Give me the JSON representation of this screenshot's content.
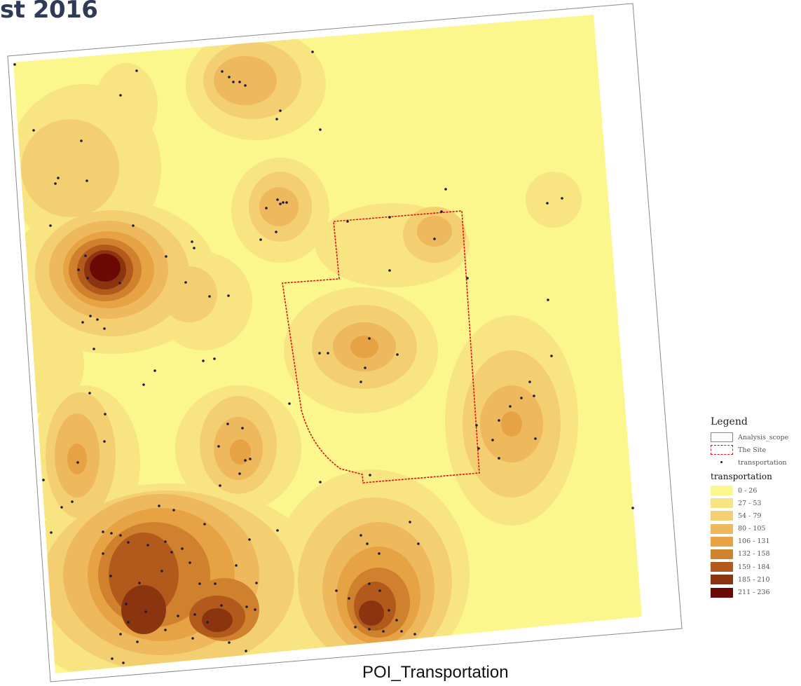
{
  "heading": "st 2016",
  "caption": "POI_Transportation",
  "legend": {
    "title": "Legend",
    "items": [
      {
        "label": "Analysis_scope",
        "symbol": "scope-box"
      },
      {
        "label": "The Site",
        "symbol": "site-dashed-box"
      },
      {
        "label": "transportation",
        "symbol": "point"
      }
    ],
    "class_title": "transportation",
    "classes": [
      {
        "label": "0 - 26",
        "color": "#fbf78c"
      },
      {
        "label": "27 - 53",
        "color": "#f8e481"
      },
      {
        "label": "54 - 79",
        "color": "#f3cf71"
      },
      {
        "label": "80 - 105",
        "color": "#eeb85c"
      },
      {
        "label": "106 - 131",
        "color": "#e7a244"
      },
      {
        "label": "132 - 158",
        "color": "#d0812d"
      },
      {
        "label": "159 - 184",
        "color": "#b15a1c"
      },
      {
        "label": "185 - 210",
        "color": "#8a3410"
      },
      {
        "label": "211 - 236",
        "color": "#6b0a05"
      }
    ]
  },
  "colors": {
    "heading": "#2f3b56",
    "site_outline": "#e0101a",
    "poi_point": "#1a1a40"
  }
}
